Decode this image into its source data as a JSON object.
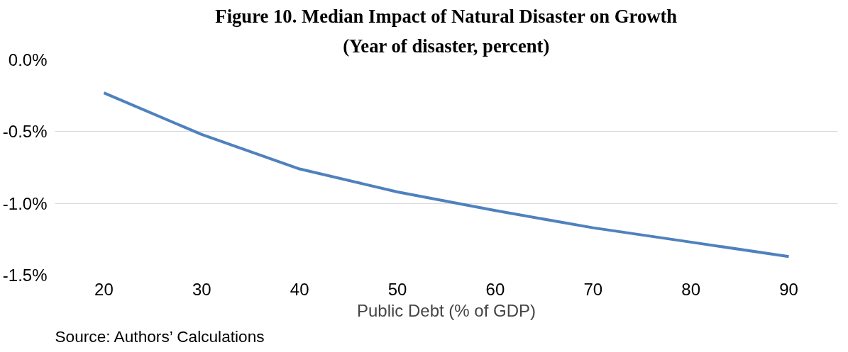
{
  "chart_data": {
    "type": "line",
    "title": "Figure 10. Median Impact of Natural Disaster on Growth",
    "subtitle": "(Year of disaster, percent)",
    "xlabel": "Public Debt (% of GDP)",
    "x": [
      20,
      30,
      40,
      50,
      60,
      70,
      80,
      90
    ],
    "series": [
      {
        "color": "#4f81bd",
        "values": [
          -0.23,
          -0.52,
          -0.76,
          -0.92,
          -1.05,
          -1.17,
          -1.27,
          -1.37
        ]
      }
    ],
    "xlim": [
      15,
      95
    ],
    "xticks": [
      20,
      30,
      40,
      50,
      60,
      70,
      80,
      90
    ],
    "ylim": [
      -1.5,
      0
    ],
    "yticks": [
      {
        "value": 0,
        "label": "0.0%"
      },
      {
        "value": -0.5,
        "label": "-0.5%"
      },
      {
        "value": -1.0,
        "label": "-1.0%"
      },
      {
        "value": -1.5,
        "label": "-1.5%"
      }
    ],
    "grid": "y",
    "marker": "none",
    "line_style": "solid",
    "annotations": [
      "Source: Authors’ Calculations"
    ]
  }
}
